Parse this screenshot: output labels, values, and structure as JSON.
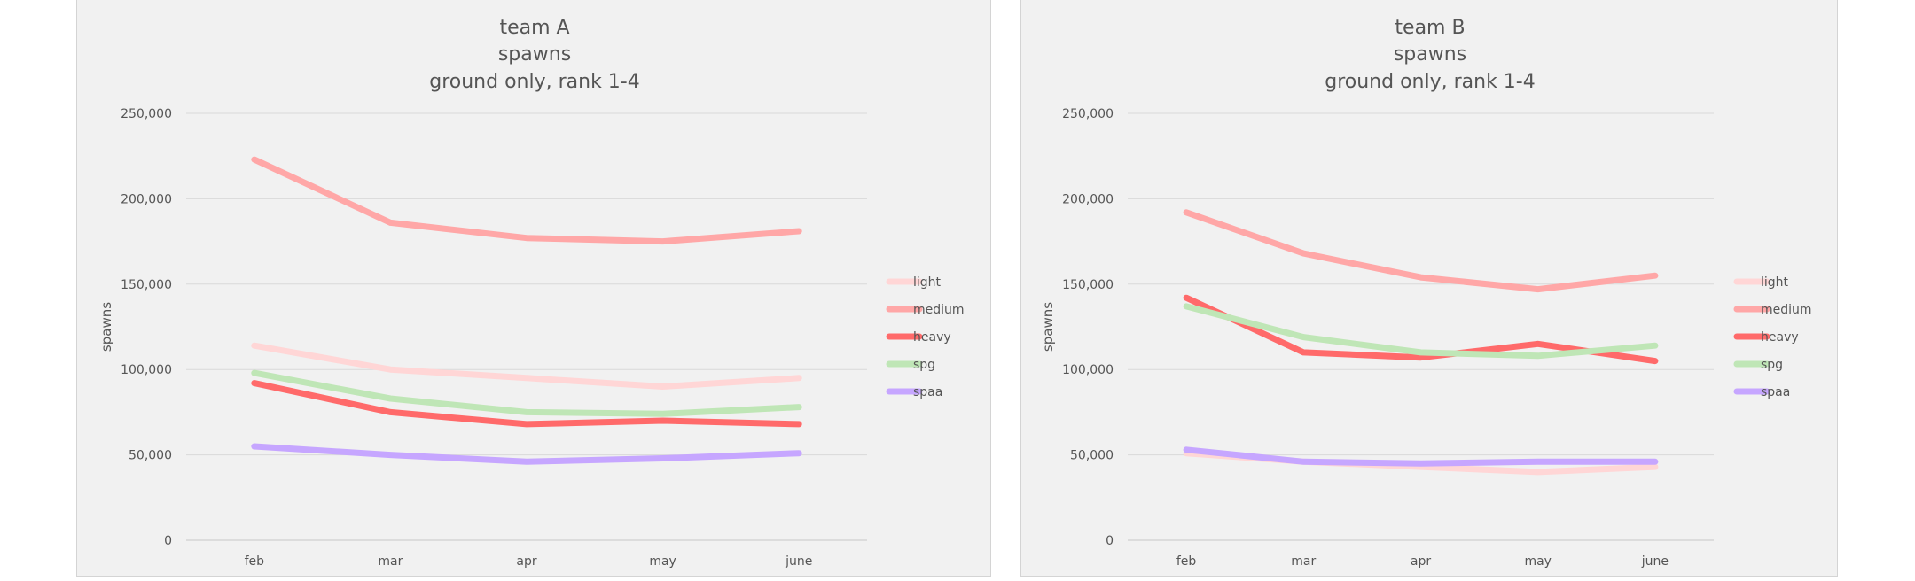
{
  "chart_data": [
    {
      "type": "line",
      "title": [
        "team A",
        "spawns",
        "ground only, rank 1-4"
      ],
      "xlabel": "",
      "ylabel": "spawns",
      "categories": [
        "feb",
        "mar",
        "apr",
        "may",
        "june"
      ],
      "ylim": [
        0,
        250000
      ],
      "yticks": [
        0,
        50000,
        100000,
        150000,
        200000,
        250000
      ],
      "ytick_labels": [
        "0",
        "50,000",
        "100,000",
        "150,000",
        "200,000",
        "250,000"
      ],
      "grid": true,
      "legend_position": "right",
      "series": [
        {
          "name": "light",
          "color": "#ffd6d6",
          "values": [
            114000,
            100000,
            95000,
            90000,
            95000
          ]
        },
        {
          "name": "medium",
          "color": "#ffa7a7",
          "values": [
            223000,
            186000,
            177000,
            175000,
            181000
          ]
        },
        {
          "name": "heavy",
          "color": "#ff6a6a",
          "values": [
            92000,
            75000,
            68000,
            70000,
            68000
          ]
        },
        {
          "name": "spg",
          "color": "#bfe6b6",
          "values": [
            98000,
            83000,
            75000,
            74000,
            78000
          ]
        },
        {
          "name": "spaa",
          "color": "#c6a6ff",
          "values": [
            55000,
            50000,
            46000,
            48000,
            51000
          ]
        }
      ]
    },
    {
      "type": "line",
      "title": [
        "team B",
        "spawns",
        "ground only, rank 1-4"
      ],
      "xlabel": "",
      "ylabel": "spawns",
      "categories": [
        "feb",
        "mar",
        "apr",
        "may",
        "june"
      ],
      "ylim": [
        0,
        250000
      ],
      "yticks": [
        0,
        50000,
        100000,
        150000,
        200000,
        250000
      ],
      "ytick_labels": [
        "0",
        "50,000",
        "100,000",
        "150,000",
        "200,000",
        "250,000"
      ],
      "grid": true,
      "legend_position": "right",
      "series": [
        {
          "name": "light",
          "color": "#ffd6d6",
          "values": [
            51000,
            46000,
            43000,
            40000,
            43000
          ]
        },
        {
          "name": "medium",
          "color": "#ffa7a7",
          "values": [
            192000,
            168000,
            154000,
            147000,
            155000
          ]
        },
        {
          "name": "heavy",
          "color": "#ff6a6a",
          "values": [
            142000,
            110000,
            107000,
            115000,
            105000
          ]
        },
        {
          "name": "spg",
          "color": "#bfe6b6",
          "values": [
            137000,
            119000,
            110000,
            108000,
            114000
          ]
        },
        {
          "name": "spaa",
          "color": "#c6a6ff",
          "values": [
            53000,
            46000,
            45000,
            46000,
            46000
          ]
        }
      ]
    }
  ]
}
